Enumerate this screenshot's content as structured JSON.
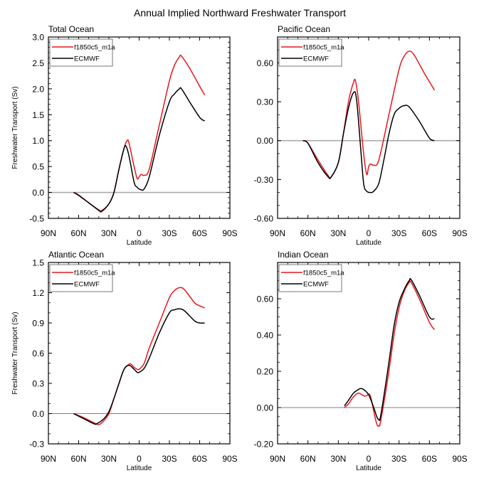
{
  "title": "Annual Implied Northward Freshwater Transport",
  "colors": {
    "model": "#e8161b",
    "obs": "#000000",
    "zero_top": "#aaaaaa",
    "zero_bottom": "#555555"
  },
  "chart_data": [
    {
      "type": "line",
      "title": "Total Ocean",
      "xlabel": "Latitude",
      "ylabel": "Freshwater Transport (Sv)",
      "xlim": [
        90,
        -90
      ],
      "xticks": [
        90,
        60,
        30,
        0,
        -30,
        -60,
        -90
      ],
      "xtick_labels": [
        "90N",
        "60N",
        "30N",
        "0",
        "30S",
        "60S",
        "90S"
      ],
      "ylim": [
        -0.5,
        3.0
      ],
      "yticks": [
        -0.5,
        0.0,
        0.5,
        1.0,
        1.5,
        2.0,
        2.5,
        3.0
      ],
      "ytick_labels": [
        "-0.5",
        "0.0",
        "0.5",
        "1.0",
        "1.5",
        "2.0",
        "2.5",
        "3.0"
      ],
      "yminor": 0.1,
      "zero_line": "light",
      "legend": "top-left",
      "series": [
        {
          "name": "f1850c5_m1a",
          "color": "#e8161b",
          "x": [
            65,
            60,
            50,
            40,
            37,
            30,
            25,
            20,
            15,
            12,
            10,
            5,
            2,
            0,
            -2,
            -5,
            -10,
            -20,
            -30,
            -35,
            -40,
            -42,
            -50,
            -60,
            -65
          ],
          "y": [
            0,
            -0.06,
            -0.2,
            -0.35,
            -0.37,
            -0.22,
            0,
            0.45,
            0.85,
            1.0,
            0.95,
            0.5,
            0.27,
            0.3,
            0.35,
            0.33,
            0.45,
            1.3,
            2.15,
            2.45,
            2.62,
            2.63,
            2.4,
            2.05,
            1.88
          ]
        },
        {
          "name": "ECMWF",
          "color": "#000000",
          "x": [
            65,
            60,
            50,
            40,
            37,
            30,
            25,
            20,
            15,
            13,
            10,
            5,
            2,
            -2,
            -5,
            -10,
            -20,
            -30,
            -35,
            -40,
            -42,
            -50,
            -60,
            -65
          ],
          "y": [
            0,
            -0.05,
            -0.2,
            -0.34,
            -0.35,
            -0.22,
            0,
            0.45,
            0.85,
            0.89,
            0.7,
            0.2,
            0.1,
            0.05,
            0.07,
            0.3,
            1.1,
            1.75,
            1.9,
            2.0,
            2.0,
            1.75,
            1.45,
            1.38
          ]
        }
      ]
    },
    {
      "type": "line",
      "title": "Pacific Ocean",
      "xlabel": "Latitude",
      "ylabel": "",
      "xlim": [
        90,
        -90
      ],
      "xticks": [
        90,
        60,
        30,
        0,
        -30,
        -60,
        -90
      ],
      "xtick_labels": [
        "90N",
        "60N",
        "30N",
        "0",
        "30S",
        "60S",
        "90S"
      ],
      "ylim": [
        -0.6,
        0.8
      ],
      "yticks": [
        -0.6,
        -0.3,
        0.0,
        0.3,
        0.6
      ],
      "ytick_labels": [
        "-0.60",
        "-0.30",
        "0.00",
        "0.30",
        "0.60"
      ],
      "yminor": 0.1,
      "zero_line": "light",
      "legend": "top-left",
      "series": [
        {
          "name": "f1850c5_m1a",
          "color": "#e8161b",
          "x": [
            65,
            60,
            50,
            40,
            37,
            30,
            25,
            20,
            15,
            13,
            10,
            5,
            2,
            0,
            -2,
            -5,
            -10,
            -20,
            -30,
            -35,
            -40,
            -45,
            -55,
            -65
          ],
          "y": [
            0,
            -0.02,
            -0.15,
            -0.27,
            -0.28,
            -0.17,
            0.05,
            0.3,
            0.45,
            0.46,
            0.3,
            -0.1,
            -0.26,
            -0.2,
            -0.18,
            -0.19,
            -0.15,
            0.2,
            0.55,
            0.65,
            0.69,
            0.66,
            0.52,
            0.39
          ]
        },
        {
          "name": "ECMWF",
          "color": "#000000",
          "x": [
            65,
            60,
            50,
            40,
            37,
            30,
            25,
            20,
            15,
            12,
            8,
            5,
            2,
            -2,
            -5,
            -10,
            -15,
            -20,
            -25,
            -30,
            -35,
            -40,
            -50,
            -60,
            -65
          ],
          "y": [
            0,
            -0.02,
            -0.17,
            -0.28,
            -0.28,
            -0.17,
            0.05,
            0.25,
            0.37,
            0.32,
            -0.05,
            -0.33,
            -0.39,
            -0.4,
            -0.39,
            -0.33,
            -0.15,
            0.05,
            0.2,
            0.25,
            0.27,
            0.26,
            0.15,
            0.02,
            0
          ]
        }
      ]
    },
    {
      "type": "line",
      "title": "Atlantic Ocean",
      "xlabel": "Latitude",
      "ylabel": "Freshwater Transport (Sv)",
      "xlim": [
        90,
        -90
      ],
      "xticks": [
        90,
        60,
        30,
        0,
        -30,
        -60,
        -90
      ],
      "xtick_labels": [
        "90N",
        "60N",
        "30N",
        "0",
        "30S",
        "60S",
        "90S"
      ],
      "ylim": [
        -0.3,
        1.5
      ],
      "yticks": [
        -0.3,
        0.0,
        0.3,
        0.6,
        0.9,
        1.2,
        1.5
      ],
      "ytick_labels": [
        "-0.3",
        "0.0",
        "0.3",
        "0.6",
        "0.9",
        "1.2",
        "1.5"
      ],
      "yminor": 0.1,
      "zero_line": "dark",
      "legend": "top-left",
      "series": [
        {
          "name": "f1850c5_m1a",
          "color": "#e8161b",
          "x": [
            65,
            55,
            45,
            40,
            35,
            30,
            25,
            20,
            15,
            10,
            8,
            5,
            2,
            0,
            -5,
            -10,
            -20,
            -30,
            -35,
            -40,
            -45,
            -55,
            -60,
            -65
          ],
          "y": [
            0,
            -0.04,
            -0.09,
            -0.11,
            -0.07,
            0,
            0.15,
            0.3,
            0.44,
            0.49,
            0.49,
            0.46,
            0.44,
            0.44,
            0.5,
            0.65,
            0.9,
            1.15,
            1.22,
            1.25,
            1.23,
            1.1,
            1.07,
            1.05
          ]
        },
        {
          "name": "ECMWF",
          "color": "#000000",
          "x": [
            65,
            55,
            45,
            42,
            35,
            30,
            25,
            20,
            15,
            10,
            5,
            2,
            0,
            -5,
            -10,
            -20,
            -30,
            -35,
            -40,
            -45,
            -55,
            -60,
            -65
          ],
          "y": [
            0,
            -0.05,
            -0.1,
            -0.1,
            -0.05,
            0.02,
            0.15,
            0.3,
            0.44,
            0.48,
            0.44,
            0.41,
            0.41,
            0.45,
            0.55,
            0.8,
            1.0,
            1.03,
            1.04,
            1.02,
            0.92,
            0.9,
            0.9
          ]
        }
      ]
    },
    {
      "type": "line",
      "title": "Indian Ocean",
      "xlabel": "Latitude",
      "ylabel": "",
      "xlim": [
        90,
        -90
      ],
      "xticks": [
        90,
        60,
        30,
        0,
        -30,
        -60,
        -90
      ],
      "xtick_labels": [
        "90N",
        "60N",
        "30N",
        "0",
        "30S",
        "60S",
        "90S"
      ],
      "ylim": [
        -0.2,
        0.8
      ],
      "yticks": [
        -0.2,
        0.0,
        0.2,
        0.4,
        0.6
      ],
      "ytick_labels": [
        "-0.20",
        "0.00",
        "0.20",
        "0.40",
        "0.60"
      ],
      "yminor": 0.05,
      "zero_line": "dark",
      "legend": "top-left",
      "series": [
        {
          "name": "f1850c5_m1a",
          "color": "#e8161b",
          "x": [
            24,
            20,
            15,
            10,
            5,
            2,
            0,
            -2,
            -5,
            -8,
            -10,
            -12,
            -20,
            -25,
            -30,
            -35,
            -40,
            -42,
            -50,
            -60,
            -65
          ],
          "y": [
            0,
            0.02,
            0.06,
            0.08,
            0.065,
            0.065,
            0.075,
            0.06,
            -0.02,
            -0.09,
            -0.1,
            -0.07,
            0.2,
            0.4,
            0.55,
            0.64,
            0.69,
            0.69,
            0.6,
            0.47,
            0.43
          ]
        },
        {
          "name": "ECMWF",
          "color": "#000000",
          "x": [
            24,
            20,
            15,
            10,
            8,
            5,
            0,
            -5,
            -8,
            -10,
            -12,
            -20,
            -25,
            -30,
            -35,
            -40,
            -42,
            -50,
            -60,
            -65
          ],
          "y": [
            0.01,
            0.04,
            0.08,
            0.1,
            0.105,
            0.1,
            0.07,
            0,
            -0.05,
            -0.065,
            -0.04,
            0.25,
            0.45,
            0.58,
            0.65,
            0.7,
            0.705,
            0.62,
            0.5,
            0.49
          ]
        }
      ]
    }
  ]
}
